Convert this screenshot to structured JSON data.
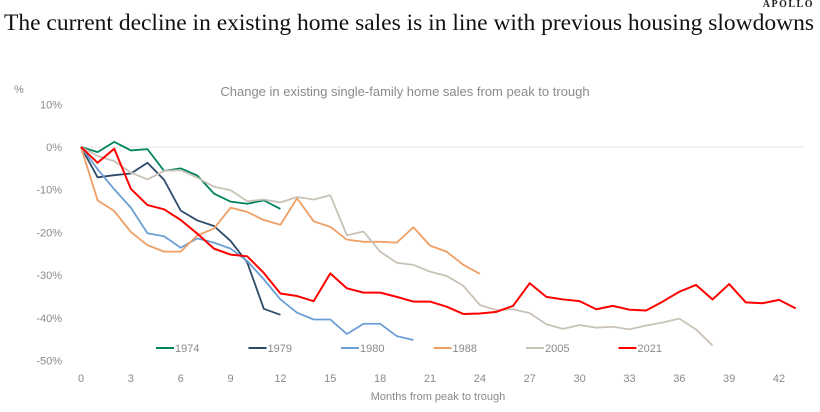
{
  "header": {
    "title": "The current decline in existing home sales is in line with previous housing slowdowns",
    "logo": "APOLLO"
  },
  "chart_data": {
    "type": "line",
    "title": "Change in existing single-family home sales from peak to trough",
    "xlabel": "Months from peak to trough",
    "ylabel": "%",
    "xlim": [
      0,
      43
    ],
    "ylim": [
      -50,
      10
    ],
    "xticks": [
      0,
      3,
      6,
      9,
      12,
      15,
      18,
      21,
      24,
      27,
      30,
      33,
      36,
      39,
      42
    ],
    "yticks": [
      10,
      0,
      -10,
      -20,
      -30,
      -40,
      -50
    ],
    "ytick_labels": [
      "10%",
      "0%",
      "-10%",
      "-20%",
      "-30%",
      "-40%",
      "-50%"
    ],
    "legend": "bottom",
    "series": [
      {
        "name": "1974",
        "color": "#00845e",
        "values": [
          0,
          -1.2,
          1.2,
          -0.8,
          -0.5,
          -5.6,
          -5,
          -6.7,
          -10.9,
          -12.8,
          -13.3,
          -12.5,
          -14.5
        ]
      },
      {
        "name": "1979",
        "color": "#2e4a6b",
        "values": [
          0,
          -7.1,
          -6.6,
          -6.2,
          -3.7,
          -7.7,
          -14.9,
          -17.2,
          -18.5,
          -22,
          -27,
          -37.9,
          -39.3
        ]
      },
      {
        "name": "1980",
        "color": "#6b9fd6",
        "values": [
          0,
          -5.2,
          -9.9,
          -14.2,
          -20.2,
          -20.9,
          -23.6,
          -21.4,
          -22.4,
          -23.8,
          -26.7,
          -31,
          -35.7,
          -38.8,
          -40.4,
          -40.4,
          -43.8,
          -41.4,
          -41.4,
          -44.3,
          -45.2
        ]
      },
      {
        "name": "1988",
        "color": "#ef9f64",
        "values": [
          0,
          -12.5,
          -15,
          -19.9,
          -23,
          -24.5,
          -24.5,
          -20.7,
          -19.1,
          -14.2,
          -15.2,
          -17.1,
          -18.2,
          -12,
          -17.4,
          -18.7,
          -21.7,
          -22.2,
          -22.2,
          -22.4,
          -18.8,
          -23.1,
          -24.5,
          -27.6,
          -29.7
        ]
      },
      {
        "name": "2005",
        "color": "#c9c2b7",
        "values": [
          0,
          -2.1,
          -3.3,
          -6,
          -7.6,
          -5.6,
          -5.4,
          -7.2,
          -9.3,
          -10.1,
          -12.7,
          -12.3,
          -13,
          -11.7,
          -12.3,
          -11.3,
          -20.7,
          -19.8,
          -24.5,
          -27.1,
          -27.6,
          -29.2,
          -30.2,
          -32.5,
          -37,
          -38.2,
          -38,
          -38.9,
          -41.5,
          -42.6,
          -41.7,
          -42.3,
          -42.1,
          -42.7,
          -41.8,
          -41.1,
          -40.2,
          -42.7,
          -46.5
        ]
      },
      {
        "name": "2021",
        "color": "#ff0000",
        "values": [
          0,
          -3.7,
          -0.4,
          -9.8,
          -13.6,
          -14.6,
          -17.1,
          -20.3,
          -23.8,
          -25.2,
          -25.6,
          -29.5,
          -34.3,
          -34.9,
          -36.1,
          -29.6,
          -33.1,
          -34.1,
          -34.1,
          -35.1,
          -36.2,
          -36.2,
          -37.4,
          -39.1,
          -39,
          -38.6,
          -37.2,
          -31.9,
          -35.1,
          -35.7,
          -36.1,
          -38,
          -37.2,
          -38.1,
          -38.3,
          -36.2,
          -33.9,
          -32.3,
          -35.7,
          -32.1,
          -36.4,
          -36.6,
          -35.8,
          -37.8
        ]
      }
    ]
  }
}
